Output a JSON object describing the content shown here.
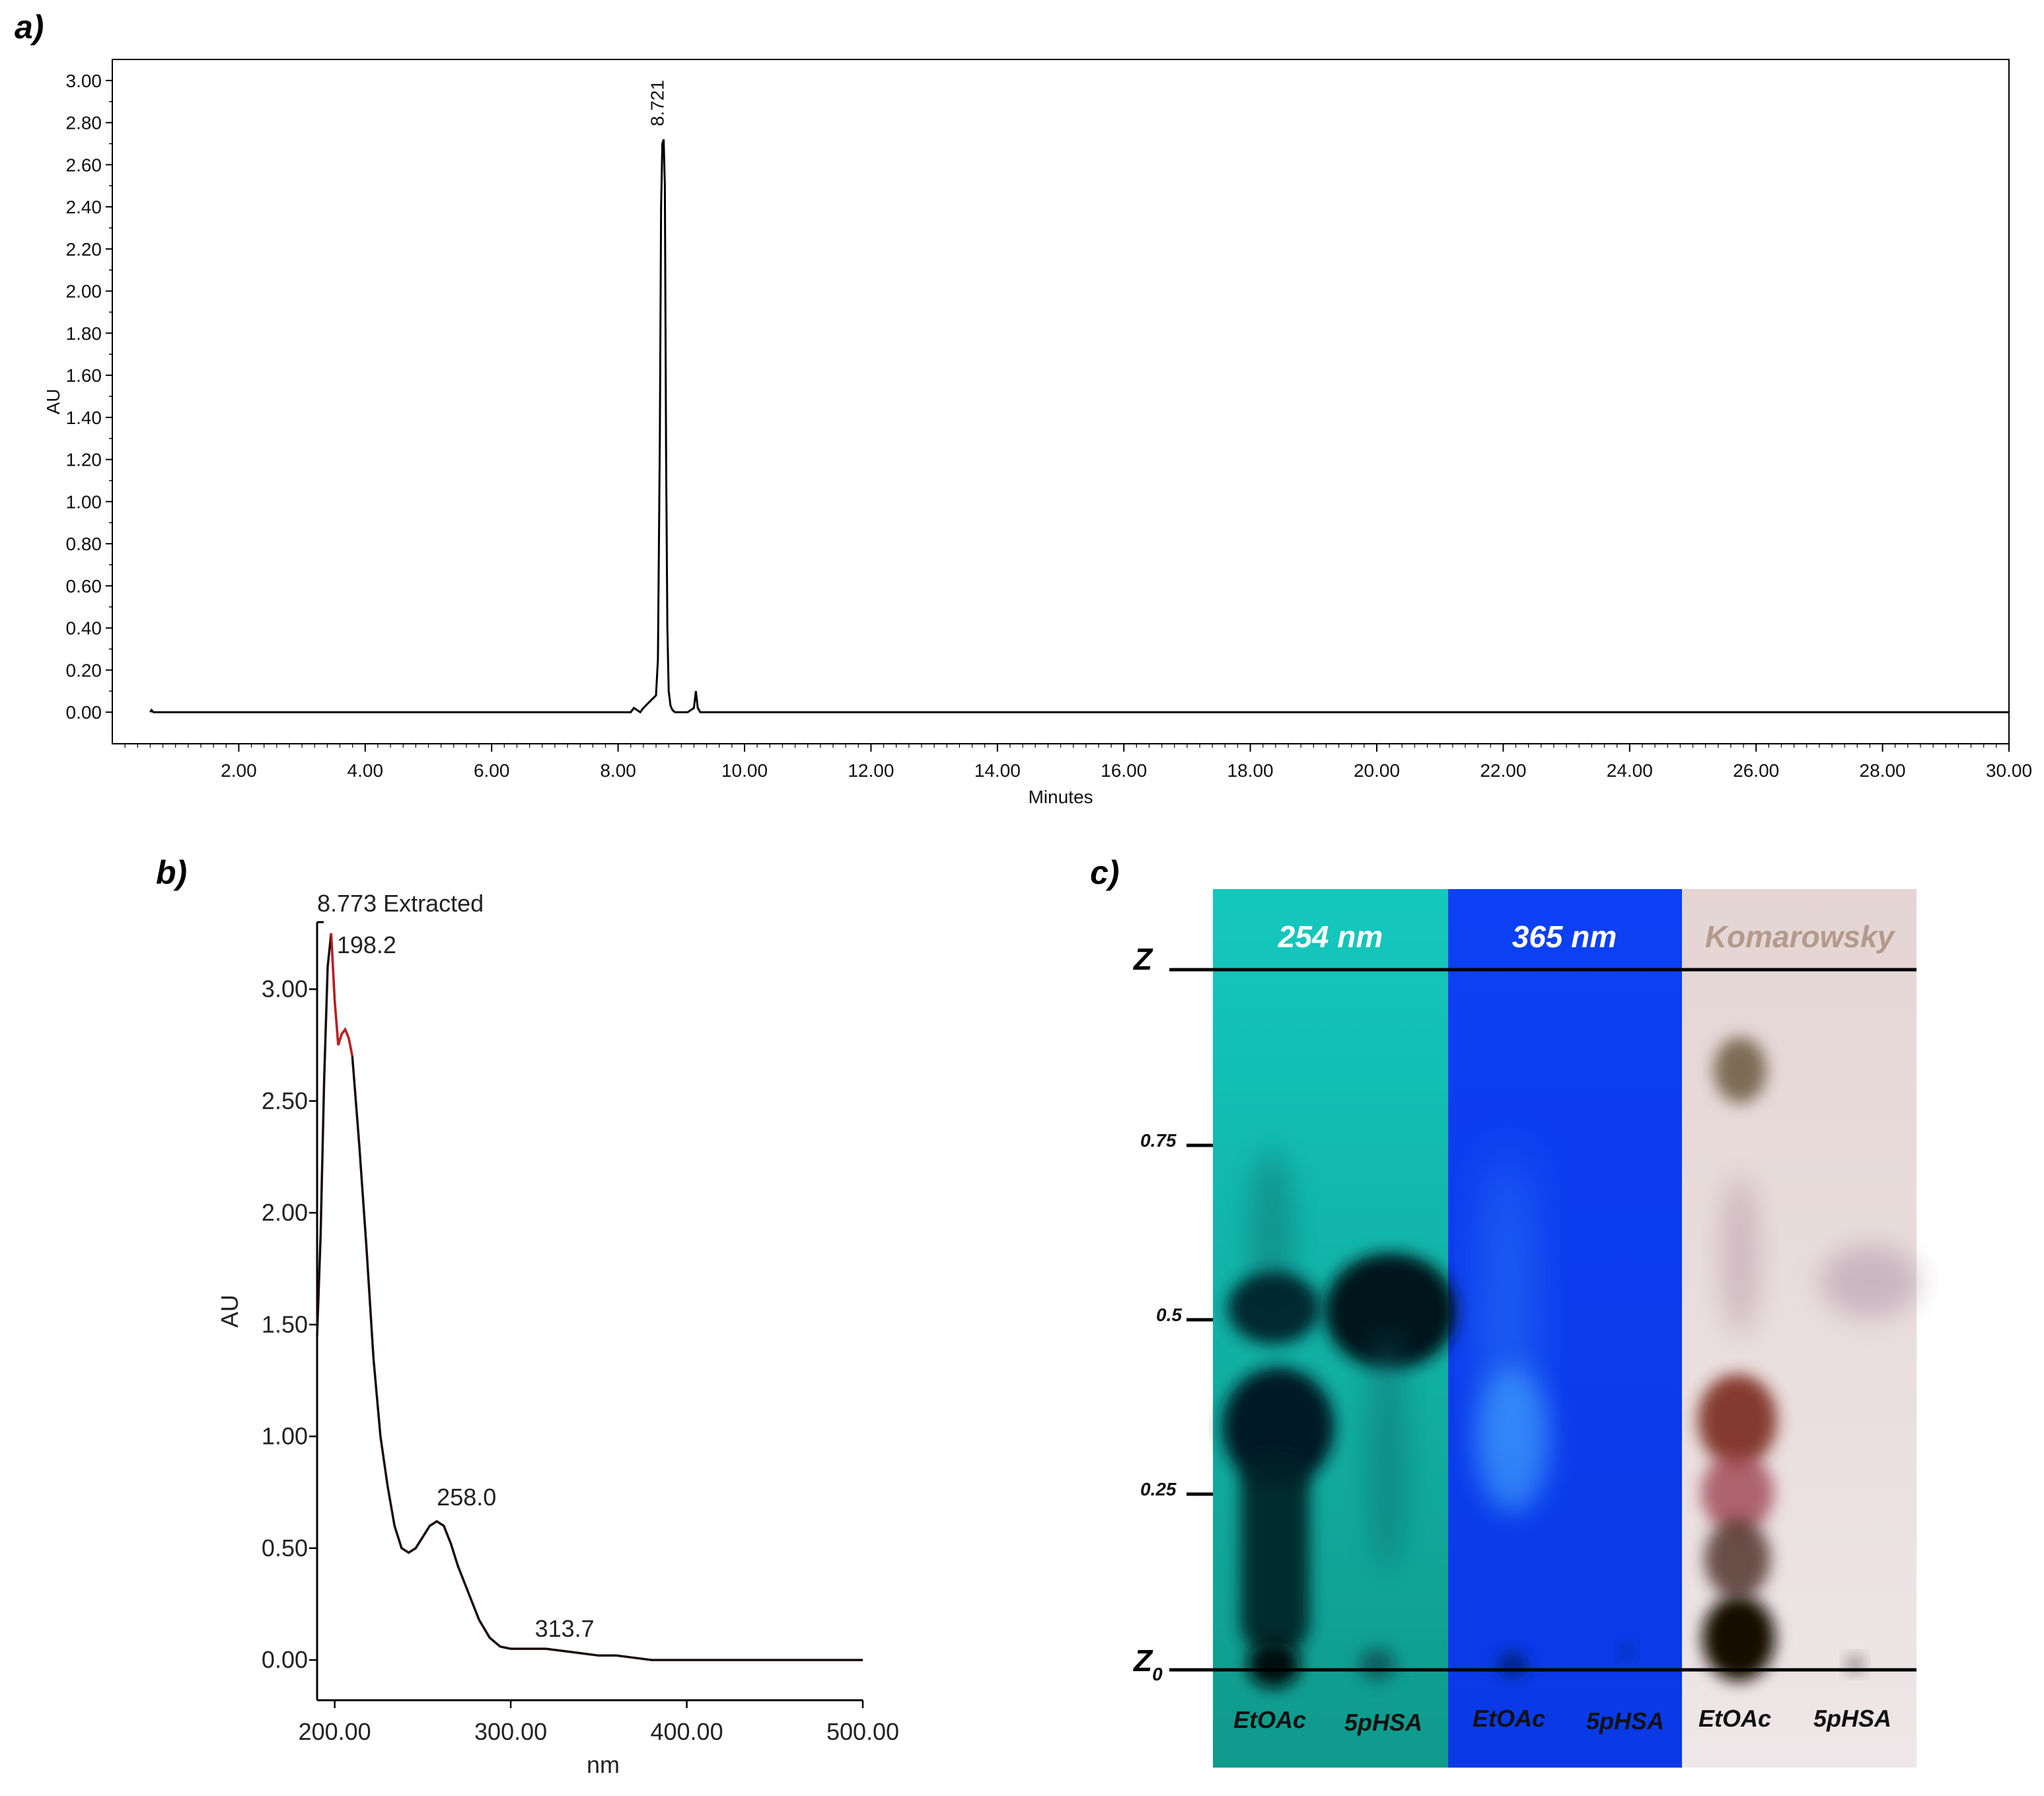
{
  "panels": {
    "a": "a)",
    "b": "b)",
    "c": "c)"
  },
  "chart_data": [
    {
      "id": "a",
      "type": "line",
      "xlabel": "Minutes",
      "ylabel": "AU",
      "xlim": [
        0,
        30
      ],
      "ylim": [
        -0.15,
        3.1
      ],
      "xticks": [
        "2.00",
        "4.00",
        "6.00",
        "8.00",
        "10.00",
        "12.00",
        "14.00",
        "16.00",
        "18.00",
        "20.00",
        "22.00",
        "24.00",
        "26.00",
        "28.00",
        "30.00"
      ],
      "yticks": [
        "0.00",
        "0.20",
        "0.40",
        "0.60",
        "0.80",
        "1.00",
        "1.20",
        "1.40",
        "1.60",
        "1.80",
        "2.00",
        "2.20",
        "2.40",
        "2.60",
        "2.80",
        "3.00"
      ],
      "annotations": [
        {
          "x": 8.721,
          "y": 2.72,
          "text": "8.721"
        }
      ],
      "x": [
        0.6,
        0.62,
        0.65,
        8.0,
        8.2,
        8.25,
        8.3,
        8.35,
        8.4,
        8.5,
        8.6,
        8.63,
        8.66,
        8.68,
        8.7,
        8.721,
        8.74,
        8.76,
        8.78,
        8.8,
        8.83,
        8.86,
        8.9,
        9.0,
        9.1,
        9.2,
        9.23,
        9.26,
        9.3,
        9.4,
        30.0
      ],
      "y": [
        0.0,
        0.01,
        0.0,
        0.0,
        0.0,
        0.02,
        0.01,
        0.0,
        0.02,
        0.05,
        0.08,
        0.25,
        1.3,
        2.4,
        2.7,
        2.72,
        2.5,
        1.2,
        0.4,
        0.1,
        0.03,
        0.01,
        0.0,
        0.0,
        0.0,
        0.02,
        0.1,
        0.02,
        0.0,
        0.0,
        0.0
      ]
    },
    {
      "id": "b",
      "type": "line",
      "title": "8.773 Extracted",
      "xlabel": "nm",
      "ylabel": "AU",
      "xlim": [
        190,
        500
      ],
      "ylim": [
        -0.18,
        3.3
      ],
      "xticks": [
        "200.00",
        "300.00",
        "400.00",
        "500.00"
      ],
      "yticks": [
        "0.00",
        "0.50",
        "1.00",
        "1.50",
        "2.00",
        "2.50",
        "3.00"
      ],
      "annotations": [
        {
          "x": 198.2,
          "y": 3.25,
          "text": "198.2"
        },
        {
          "x": 258.0,
          "y": 0.62,
          "text": "258.0"
        },
        {
          "x": 313.7,
          "y": 0.05,
          "text": "313.7"
        }
      ],
      "x": [
        190,
        192,
        194,
        196,
        198,
        200,
        202,
        204,
        206,
        208,
        210,
        214,
        218,
        222,
        226,
        230,
        234,
        238,
        242,
        246,
        250,
        254,
        258,
        262,
        266,
        270,
        276,
        282,
        288,
        294,
        300,
        310,
        320,
        330,
        340,
        350,
        360,
        370,
        380,
        400,
        420,
        450,
        480,
        500
      ],
      "y": [
        1.45,
        1.9,
        2.6,
        3.1,
        3.25,
        2.95,
        2.75,
        2.8,
        2.82,
        2.78,
        2.7,
        2.3,
        1.85,
        1.35,
        1.0,
        0.78,
        0.6,
        0.5,
        0.48,
        0.5,
        0.55,
        0.6,
        0.62,
        0.6,
        0.52,
        0.42,
        0.3,
        0.18,
        0.1,
        0.06,
        0.05,
        0.05,
        0.05,
        0.04,
        0.03,
        0.02,
        0.02,
        0.01,
        0.0,
        0.0,
        0.0,
        0.0,
        0.0,
        0.0
      ]
    }
  ],
  "tlc": {
    "top_label": "Z",
    "bottom_label": "Z",
    "bottom_sub": "0",
    "rf_marks": [
      "0.75",
      "0.5",
      "0.25"
    ],
    "plates": [
      {
        "title": "254 nm",
        "lanes": [
          "EtOAc",
          "5pHSA"
        ],
        "bg": "#19c6bc",
        "title_color": "#ffffff"
      },
      {
        "title": "365 nm",
        "lanes": [
          "EtOAc",
          "5pHSA"
        ],
        "bg": "#0c3ff2",
        "title_color": "#ffffff"
      },
      {
        "title": "Komarowsky",
        "lanes": [
          "EtOAc",
          "5pHSA"
        ],
        "bg": "#ebe1e2",
        "title_color": "#b39a8c"
      }
    ]
  }
}
